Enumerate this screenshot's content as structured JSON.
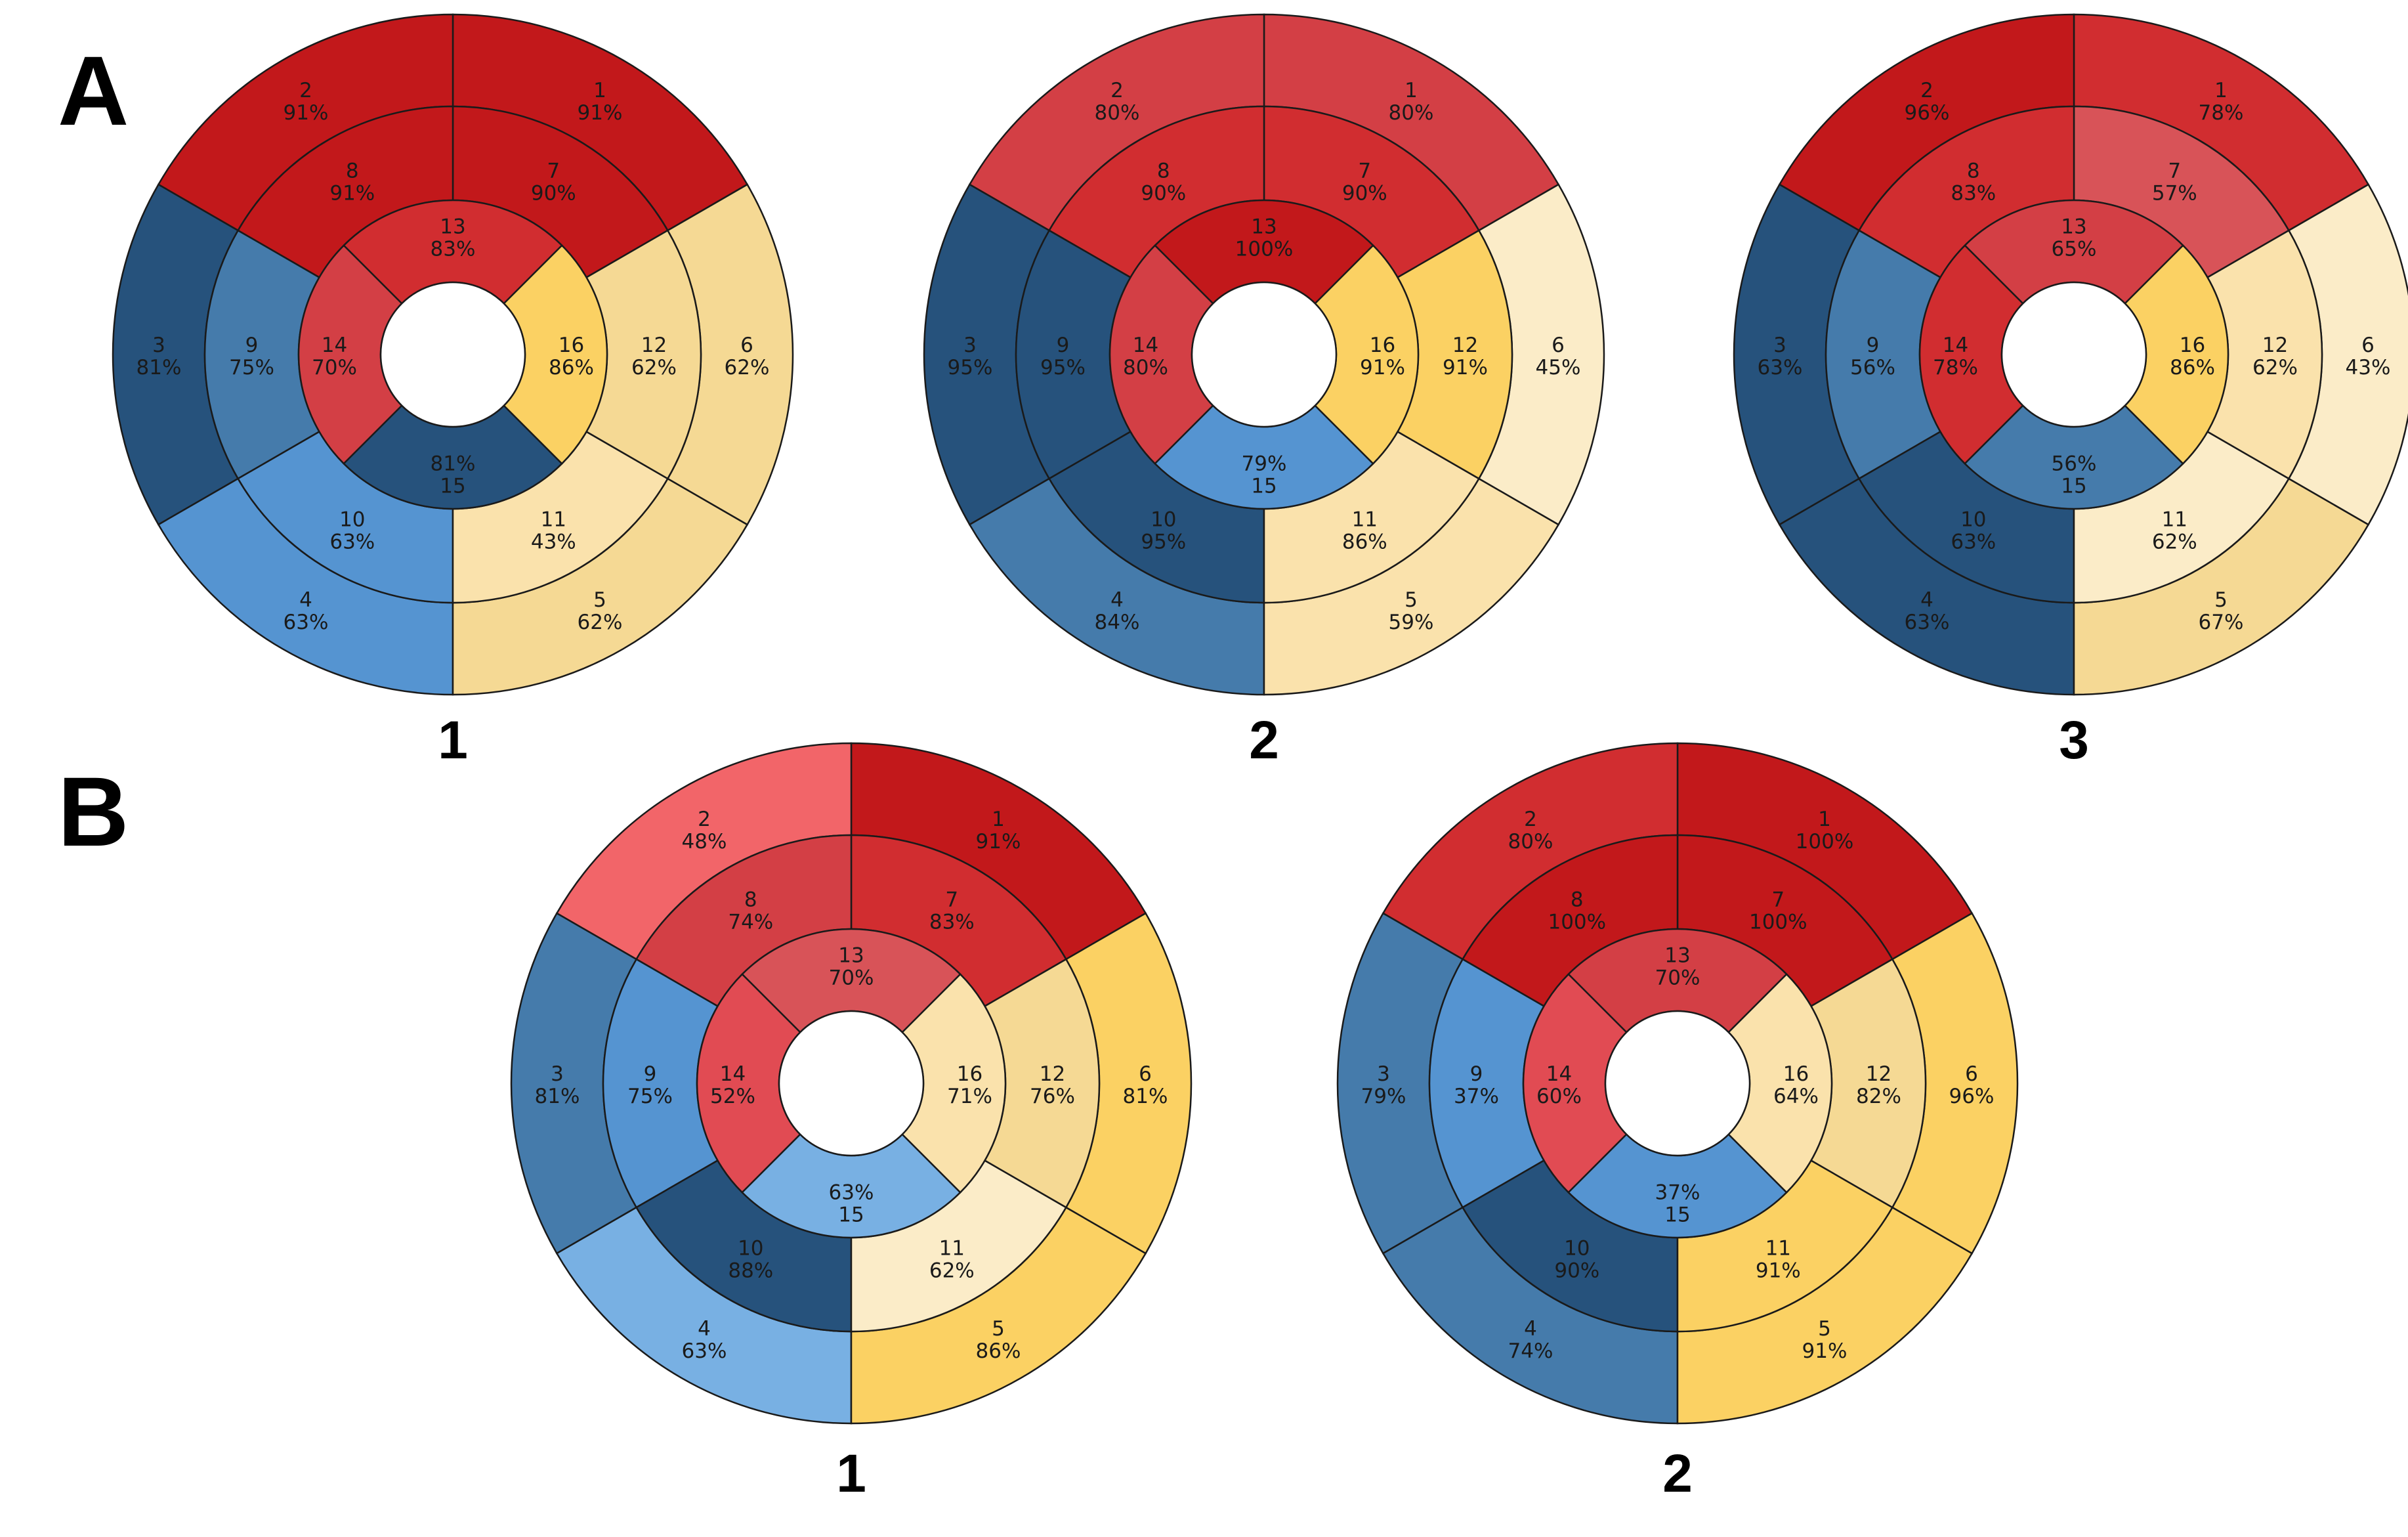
{
  "panels": [
    {
      "letter": "A"
    },
    {
      "letter": "B"
    }
  ],
  "colors": {
    "red_dark": "#c2181b",
    "red": "#d12d30",
    "red_mid": "#d33f45",
    "red_light": "#d85358",
    "red_pale": "#f26569",
    "orange_dark": "#fbd163",
    "orange_mid": "#f5d994",
    "orange_light": "#fae2ac",
    "orange_pale": "#fbecc8",
    "blue_dark": "#26527c",
    "blue_mid": "#457bab",
    "blue": "#5594d1",
    "blue_light": "#78b0e3"
  },
  "chart_data": [
    {
      "type": "bullseye",
      "panel": "A",
      "caption": "1",
      "segments": [
        {
          "id": "1",
          "value": 91,
          "label": "91%",
          "color": "#c2181b"
        },
        {
          "id": "2",
          "value": 91,
          "label": "91%",
          "color": "#c2181b"
        },
        {
          "id": "3",
          "value": 81,
          "label": "81%",
          "color": "#26527c"
        },
        {
          "id": "4",
          "value": 63,
          "label": "63%",
          "color": "#5594d1"
        },
        {
          "id": "5",
          "value": 62,
          "label": "62%",
          "color": "#f5d994"
        },
        {
          "id": "6",
          "value": 62,
          "label": "62%",
          "color": "#f5d994"
        },
        {
          "id": "7",
          "value": 90,
          "label": "90%",
          "color": "#c2181b"
        },
        {
          "id": "8",
          "value": 91,
          "label": "91%",
          "color": "#c2181b"
        },
        {
          "id": "9",
          "value": 75,
          "label": "75%",
          "color": "#457bab"
        },
        {
          "id": "10",
          "value": 63,
          "label": "63%",
          "color": "#5594d1"
        },
        {
          "id": "11",
          "value": 43,
          "label": "43%",
          "color": "#fae2ac"
        },
        {
          "id": "12",
          "value": 62,
          "label": "62%",
          "color": "#f5d994"
        },
        {
          "id": "13",
          "value": 83,
          "label": "83%",
          "color": "#d12d30"
        },
        {
          "id": "14",
          "value": 70,
          "label": "70%",
          "color": "#d33f45"
        },
        {
          "id": "15",
          "value": 81,
          "label": "81%",
          "color": "#26527c"
        },
        {
          "id": "16",
          "value": 86,
          "label": "86%",
          "color": "#fbd163"
        }
      ]
    },
    {
      "type": "bullseye",
      "panel": "A",
      "caption": "2",
      "segments": [
        {
          "id": "1",
          "value": 80,
          "label": "80%",
          "color": "#d33f45"
        },
        {
          "id": "2",
          "value": 80,
          "label": "80%",
          "color": "#d33f45"
        },
        {
          "id": "3",
          "value": 95,
          "label": "95%",
          "color": "#26527c"
        },
        {
          "id": "4",
          "value": 84,
          "label": "84%",
          "color": "#457bab"
        },
        {
          "id": "5",
          "value": 59,
          "label": "59%",
          "color": "#fae2ac"
        },
        {
          "id": "6",
          "value": 45,
          "label": "45%",
          "color": "#fbecc8"
        },
        {
          "id": "7",
          "value": 90,
          "label": "90%",
          "color": "#d12d30"
        },
        {
          "id": "8",
          "value": 90,
          "label": "90%",
          "color": "#d12d30"
        },
        {
          "id": "9",
          "value": 95,
          "label": "95%",
          "color": "#26527c"
        },
        {
          "id": "10",
          "value": 95,
          "label": "95%",
          "color": "#26527c"
        },
        {
          "id": "11",
          "value": 86,
          "label": "86%",
          "color": "#fae2ac"
        },
        {
          "id": "12",
          "value": 91,
          "label": "91%",
          "color": "#fbd163"
        },
        {
          "id": "13",
          "value": 100,
          "label": "100%",
          "color": "#c2181b"
        },
        {
          "id": "14",
          "value": 80,
          "label": "80%",
          "color": "#d33f45"
        },
        {
          "id": "15",
          "value": 79,
          "label": "79%",
          "color": "#5594d1"
        },
        {
          "id": "16",
          "value": 91,
          "label": "91%",
          "color": "#fbd163"
        }
      ]
    },
    {
      "type": "bullseye",
      "panel": "A",
      "caption": "3",
      "segments": [
        {
          "id": "1",
          "value": 78,
          "label": "78%",
          "color": "#d12d30"
        },
        {
          "id": "2",
          "value": 96,
          "label": "96%",
          "color": "#c2181b"
        },
        {
          "id": "3",
          "value": 63,
          "label": "63%",
          "color": "#26527c"
        },
        {
          "id": "4",
          "value": 63,
          "label": "63%",
          "color": "#26527c"
        },
        {
          "id": "5",
          "value": 67,
          "label": "67%",
          "color": "#f5d994"
        },
        {
          "id": "6",
          "value": 43,
          "label": "43%",
          "color": "#fbecc8"
        },
        {
          "id": "7",
          "value": 57,
          "label": "57%",
          "color": "#d85358"
        },
        {
          "id": "8",
          "value": 83,
          "label": "83%",
          "color": "#d12d30"
        },
        {
          "id": "9",
          "value": 56,
          "label": "56%",
          "color": "#457bab"
        },
        {
          "id": "10",
          "value": 63,
          "label": "63%",
          "color": "#26527c"
        },
        {
          "id": "11",
          "value": 62,
          "label": "62%",
          "color": "#fbecc8"
        },
        {
          "id": "12",
          "value": 62,
          "label": "62%",
          "color": "#fae2ac"
        },
        {
          "id": "13",
          "value": 65,
          "label": "65%",
          "color": "#d33f45"
        },
        {
          "id": "14",
          "value": 78,
          "label": "78%",
          "color": "#d12d30"
        },
        {
          "id": "15",
          "value": 56,
          "label": "56%",
          "color": "#457bab"
        },
        {
          "id": "16",
          "value": 86,
          "label": "86%",
          "color": "#fbd163"
        }
      ]
    },
    {
      "type": "bullseye",
      "panel": "B",
      "caption": "1",
      "segments": [
        {
          "id": "1",
          "value": 91,
          "label": "91%",
          "color": "#c2181b"
        },
        {
          "id": "2",
          "value": 48,
          "label": "48%",
          "color": "#f26569"
        },
        {
          "id": "3",
          "value": 81,
          "label": "81%",
          "color": "#457bab"
        },
        {
          "id": "4",
          "value": 63,
          "label": "63%",
          "color": "#78b0e3"
        },
        {
          "id": "5",
          "value": 86,
          "label": "86%",
          "color": "#fbd163"
        },
        {
          "id": "6",
          "value": 81,
          "label": "81%",
          "color": "#fbd163"
        },
        {
          "id": "7",
          "value": 83,
          "label": "83%",
          "color": "#d12d30"
        },
        {
          "id": "8",
          "value": 74,
          "label": "74%",
          "color": "#d33f45"
        },
        {
          "id": "9",
          "value": 75,
          "label": "75%",
          "color": "#5594d1"
        },
        {
          "id": "10",
          "value": 88,
          "label": "88%",
          "color": "#26527c"
        },
        {
          "id": "11",
          "value": 62,
          "label": "62%",
          "color": "#fbecc8"
        },
        {
          "id": "12",
          "value": 76,
          "label": "76%",
          "color": "#f5d994"
        },
        {
          "id": "13",
          "value": 70,
          "label": "70%",
          "color": "#d85358"
        },
        {
          "id": "14",
          "value": 52,
          "label": "52%",
          "color": "#e14b53"
        },
        {
          "id": "15",
          "value": 63,
          "label": "63%",
          "color": "#78b0e3"
        },
        {
          "id": "16",
          "value": 71,
          "label": "71%",
          "color": "#fae2ac"
        }
      ]
    },
    {
      "type": "bullseye",
      "panel": "B",
      "caption": "2",
      "segments": [
        {
          "id": "1",
          "value": 100,
          "label": "100%",
          "color": "#c2181b"
        },
        {
          "id": "2",
          "value": 80,
          "label": "80%",
          "color": "#d12d30"
        },
        {
          "id": "3",
          "value": 79,
          "label": "79%",
          "color": "#457bab"
        },
        {
          "id": "4",
          "value": 74,
          "label": "74%",
          "color": "#457bab"
        },
        {
          "id": "5",
          "value": 91,
          "label": "91%",
          "color": "#fbd163"
        },
        {
          "id": "6",
          "value": 96,
          "label": "96%",
          "color": "#fbd163"
        },
        {
          "id": "7",
          "value": 100,
          "label": "100%",
          "color": "#c2181b"
        },
        {
          "id": "8",
          "value": 100,
          "label": "100%",
          "color": "#c2181b"
        },
        {
          "id": "9",
          "value": 37,
          "label": "37%",
          "color": "#5594d1"
        },
        {
          "id": "10",
          "value": 90,
          "label": "90%",
          "color": "#26527c"
        },
        {
          "id": "11",
          "value": 91,
          "label": "91%",
          "color": "#fbd163"
        },
        {
          "id": "12",
          "value": 82,
          "label": "82%",
          "color": "#f5d994"
        },
        {
          "id": "13",
          "value": 70,
          "label": "70%",
          "color": "#d33f45"
        },
        {
          "id": "14",
          "value": 60,
          "label": "60%",
          "color": "#e14b53"
        },
        {
          "id": "15",
          "value": 37,
          "label": "37%",
          "color": "#5594d1"
        },
        {
          "id": "16",
          "value": 64,
          "label": "64%",
          "color": "#fae2ac"
        }
      ]
    }
  ]
}
